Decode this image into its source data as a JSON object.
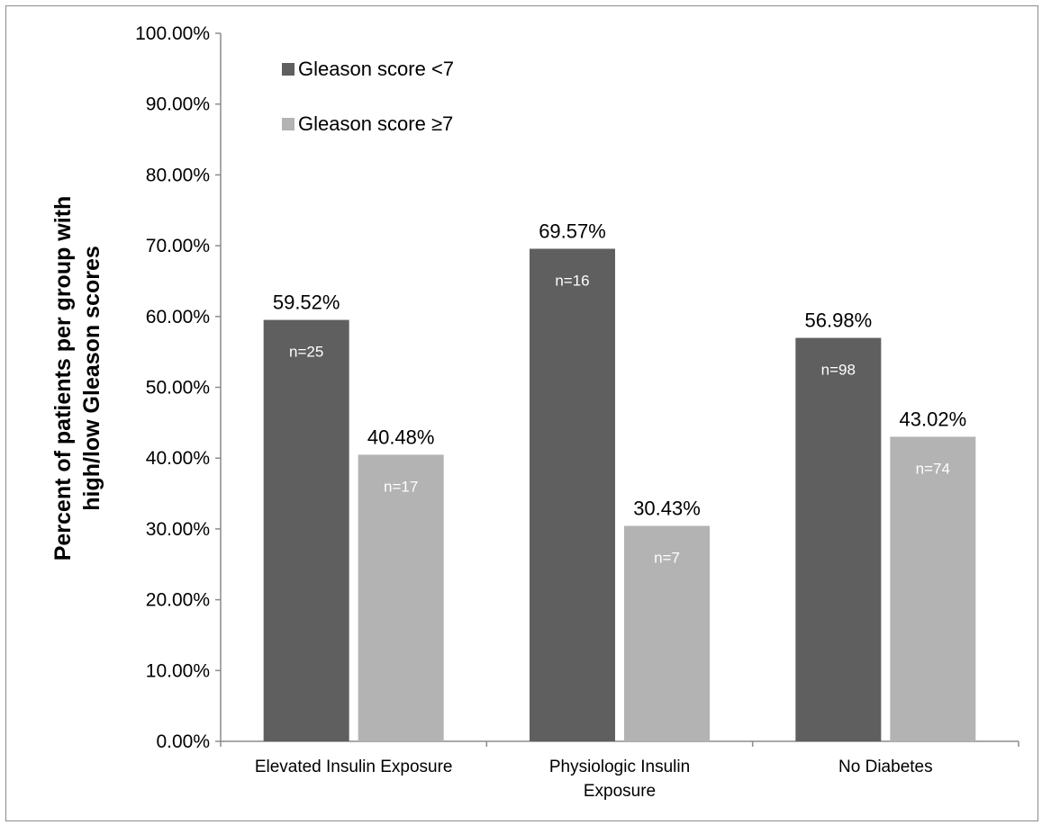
{
  "chart_data": {
    "type": "bar",
    "title": "",
    "xlabel": "",
    "ylabel": [
      "Percent of patients per group with",
      "high/low Gleason scores"
    ],
    "ylim": [
      0,
      100
    ],
    "yticks": [
      "0.00%",
      "10.00%",
      "20.00%",
      "30.00%",
      "40.00%",
      "50.00%",
      "60.00%",
      "70.00%",
      "80.00%",
      "90.00%",
      "100.00%"
    ],
    "categories": [
      [
        "Elevated Insulin Exposure"
      ],
      [
        "Physiologic Insulin",
        "Exposure"
      ],
      [
        "No Diabetes"
      ]
    ],
    "series": [
      {
        "name": "Gleason score <7",
        "color": "#5f5f5f",
        "values": [
          59.52,
          69.57,
          56.98
        ],
        "labels": [
          "59.52%",
          "69.57%",
          "56.98%"
        ],
        "counts": [
          "n=25",
          "n=16",
          "n=98"
        ]
      },
      {
        "name": "Gleason score ≥7",
        "color": "#b3b3b3",
        "values": [
          40.48,
          30.43,
          43.02
        ],
        "labels": [
          "40.48%",
          "30.43%",
          "43.02%"
        ],
        "counts": [
          "n=17",
          "n=7",
          "n=74"
        ]
      }
    ],
    "legend_position": "top-left",
    "grid": false
  }
}
